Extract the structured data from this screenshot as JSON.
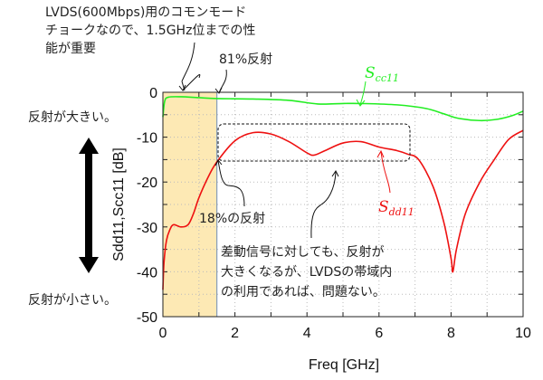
{
  "chart_data": {
    "type": "line",
    "title": "",
    "xlabel": "Freq [GHz]",
    "ylabel": "Sdd11,Scc11 [dB]",
    "xlim": [
      0,
      10
    ],
    "ylim": [
      -50,
      0
    ],
    "xticks": [
      "0",
      "2",
      "4",
      "6",
      "8",
      "10"
    ],
    "yticks": [
      "0",
      "-10",
      "-20",
      "-30",
      "-40",
      "-50"
    ],
    "grid": true,
    "highlight_band_ghz": [
      0,
      1.5
    ],
    "series": [
      {
        "name": "Scc11",
        "label_main": "S",
        "label_sub": "cc11",
        "color": "#22ee22",
        "x": [
          0,
          0.05,
          0.15,
          0.5,
          1.0,
          1.5,
          2.5,
          3.5,
          4.3,
          5.0,
          5.5,
          6.5,
          7.3,
          7.8,
          8.2,
          8.8,
          9.3,
          9.7,
          10
        ],
        "y": [
          -5.5,
          -2.0,
          -1.1,
          -1.0,
          -1.2,
          -1.4,
          -1.5,
          -1.8,
          -2.6,
          -2.5,
          -2.5,
          -2.8,
          -3.6,
          -4.8,
          -5.8,
          -6.3,
          -6.0,
          -5.2,
          -4.2
        ]
      },
      {
        "name": "Sdd11",
        "label_main": "S",
        "label_sub": "dd11",
        "color": "#ee1111",
        "x": [
          0,
          0.03,
          0.1,
          0.2,
          0.3,
          0.5,
          0.7,
          0.85,
          1.0,
          1.25,
          1.5,
          2.0,
          2.5,
          3.0,
          3.5,
          4.0,
          4.2,
          4.5,
          5.0,
          5.5,
          6.0,
          6.5,
          6.8,
          7.1,
          7.5,
          7.8,
          8.0,
          8.05,
          8.15,
          8.4,
          8.8,
          9.2,
          9.6,
          10
        ],
        "y": [
          -44,
          -38,
          -33,
          -30.5,
          -29.5,
          -30,
          -29.5,
          -27,
          -23.5,
          -19,
          -15.5,
          -10.8,
          -9.0,
          -9.3,
          -11,
          -13.5,
          -14,
          -13,
          -11.3,
          -11,
          -12.2,
          -13,
          -13.8,
          -15,
          -21,
          -29,
          -37,
          -40,
          -35,
          -27,
          -20,
          -15,
          -10.5,
          -8.5
        ]
      }
    ]
  },
  "annotations": {
    "lvds_note": [
      "LVDS(600Mbps)用のコモンモード",
      "チョークなので、1.5GHz位までの性",
      "能が重要"
    ],
    "reflect_81": "81%反射",
    "reflect_18": "18%の反射",
    "large_reflection": "反射が大きい。",
    "small_reflection": "反射が小さい。",
    "diff_note": [
      "差動信号に対しても、反射が",
      "大きくなるが、LVDSの帯域内",
      "の利用であれば、問題ない。"
    ]
  }
}
